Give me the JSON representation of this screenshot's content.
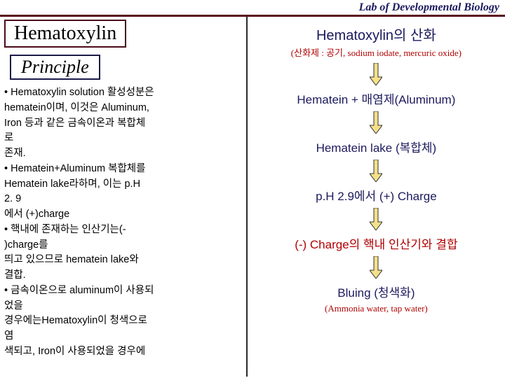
{
  "header": {
    "text": "Lab of Developmental Biology",
    "border_color": "#5a0e1e",
    "text_color": "#1a1a5e"
  },
  "left": {
    "title": "Hematoxylin",
    "title_color": "#000",
    "title_border": "#4a0a1a",
    "principle": "Principle",
    "principle_color": "#000",
    "principle_border": "#1a1a4a",
    "body": "• Hematoxylin solution 활성성분은\n  hematein이며, 이것은 Aluminum,\n  Iron 등과 같은 금속이온과 복합체\n로\n  존재.\n• Hematein+Aluminum 복합체를\n  Hematein lake라하며, 이는 p.H\n2. 9\n  에서 (+)charge\n• 핵내에 존재하는 인산기는(-\n)charge를\n  띄고 있으므로  hematein lake와\n  결합.\n• 금속이온으로 aluminum이 사용되\n었을\n  경우에는Hematoxylin이 청색으로\n염\n  색되고, Iron이 사용되었을 경우에"
  },
  "right": {
    "title": "Hematoxylin의 산화",
    "title_color": "#1a1a5e",
    "subtitle": "(산화제 : 공기, sodium iodate, mercuric oxide)",
    "subtitle_color": "#b00000",
    "steps": [
      {
        "text": "Hematein + 매염제(Aluminum)",
        "color": "#1a1a5e"
      },
      {
        "text": "Hematein lake (복합체)",
        "color": "#1a1a5e"
      },
      {
        "text": "p.H 2.9에서 (+) Charge",
        "color": "#1a1a5e"
      },
      {
        "text": "(-) Charge의 핵내 인산기와 결합",
        "color": "#b00000"
      },
      {
        "text": "Bluing (청색화)",
        "color": "#1a1a5e"
      }
    ],
    "footer": "(Ammonia water, tap water)",
    "footer_color": "#b00000"
  },
  "arrow": {
    "outline": "#333",
    "fill": "#f5e08a",
    "width": 18,
    "height": 32
  },
  "layout": {
    "page_bg": "#ffffff",
    "left_border": "#2a2a2a"
  }
}
